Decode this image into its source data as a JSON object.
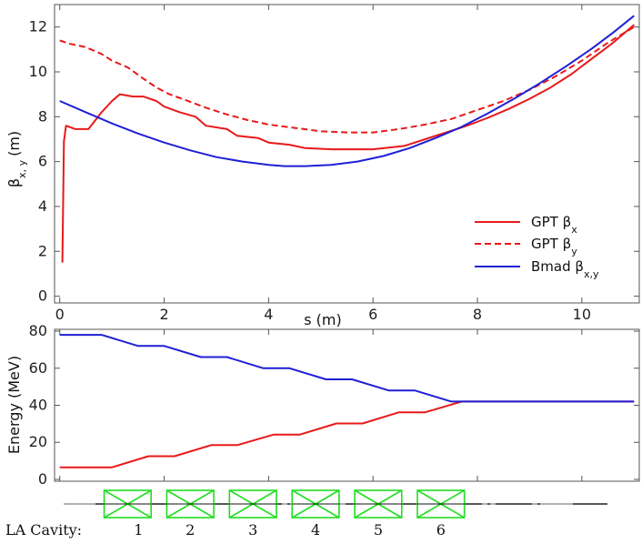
{
  "chart_data": [
    {
      "type": "line",
      "xlabel": "s (m)",
      "ylabel": "β",
      "ylabel_sub": "x, y",
      "ylabel_unit": "(m)",
      "xlim": [
        -0.1,
        11.1
      ],
      "ylim": [
        -0.3,
        13.0
      ],
      "xticks": [
        0,
        2,
        4,
        6,
        8,
        10
      ],
      "yticks": [
        0,
        2,
        4,
        6,
        8,
        10,
        12
      ],
      "legend_position": "lower-right",
      "series": [
        {
          "name": "GPT β",
          "name_sub": "x",
          "color": "#e8191a",
          "style": "solid",
          "points": [
            [
              0.05,
              1.5
            ],
            [
              0.08,
              6.9
            ],
            [
              0.12,
              7.6
            ],
            [
              0.3,
              7.45
            ],
            [
              0.55,
              7.45
            ],
            [
              0.8,
              8.2
            ],
            [
              1.0,
              8.7
            ],
            [
              1.15,
              9.0
            ],
            [
              1.4,
              8.9
            ],
            [
              1.6,
              8.9
            ],
            [
              1.85,
              8.7
            ],
            [
              2.0,
              8.45
            ],
            [
              2.3,
              8.2
            ],
            [
              2.6,
              8.0
            ],
            [
              2.8,
              7.6
            ],
            [
              3.2,
              7.45
            ],
            [
              3.4,
              7.15
            ],
            [
              3.8,
              7.05
            ],
            [
              4.0,
              6.85
            ],
            [
              4.4,
              6.75
            ],
            [
              4.7,
              6.6
            ],
            [
              5.2,
              6.55
            ],
            [
              5.6,
              6.55
            ],
            [
              6.0,
              6.55
            ],
            [
              6.6,
              6.7
            ],
            [
              7.0,
              7.0
            ],
            [
              7.4,
              7.3
            ],
            [
              7.8,
              7.6
            ],
            [
              8.2,
              7.95
            ],
            [
              8.6,
              8.35
            ],
            [
              9.0,
              8.8
            ],
            [
              9.4,
              9.3
            ],
            [
              9.8,
              9.9
            ],
            [
              10.2,
              10.6
            ],
            [
              10.6,
              11.3
            ],
            [
              11.0,
              12.1
            ]
          ]
        },
        {
          "name": "GPT β",
          "name_sub": "y",
          "color": "#e8191a",
          "style": "dashed",
          "points": [
            [
              0.0,
              11.4
            ],
            [
              0.2,
              11.25
            ],
            [
              0.5,
              11.1
            ],
            [
              0.8,
              10.8
            ],
            [
              1.0,
              10.5
            ],
            [
              1.3,
              10.2
            ],
            [
              1.6,
              9.7
            ],
            [
              1.85,
              9.3
            ],
            [
              2.1,
              9.0
            ],
            [
              2.4,
              8.75
            ],
            [
              2.8,
              8.4
            ],
            [
              3.2,
              8.1
            ],
            [
              3.6,
              7.85
            ],
            [
              4.0,
              7.65
            ],
            [
              4.5,
              7.5
            ],
            [
              5.0,
              7.35
            ],
            [
              5.5,
              7.3
            ],
            [
              6.0,
              7.3
            ],
            [
              6.5,
              7.45
            ],
            [
              7.0,
              7.65
            ],
            [
              7.5,
              7.9
            ],
            [
              8.0,
              8.3
            ],
            [
              8.5,
              8.7
            ],
            [
              9.0,
              9.2
            ],
            [
              9.5,
              9.8
            ],
            [
              10.0,
              10.5
            ],
            [
              10.5,
              11.3
            ],
            [
              11.0,
              12.0
            ]
          ]
        },
        {
          "name": "Bmad β",
          "name_sub": "x,y",
          "color": "#1f1fd6",
          "style": "solid",
          "points": [
            [
              0.0,
              8.7
            ],
            [
              0.5,
              8.2
            ],
            [
              1.0,
              7.7
            ],
            [
              1.5,
              7.25
            ],
            [
              2.0,
              6.85
            ],
            [
              2.5,
              6.5
            ],
            [
              3.0,
              6.2
            ],
            [
              3.5,
              6.0
            ],
            [
              4.0,
              5.85
            ],
            [
              4.3,
              5.8
            ],
            [
              4.7,
              5.8
            ],
            [
              5.2,
              5.85
            ],
            [
              5.7,
              6.0
            ],
            [
              6.2,
              6.25
            ],
            [
              6.7,
              6.6
            ],
            [
              7.2,
              7.05
            ],
            [
              7.7,
              7.55
            ],
            [
              8.2,
              8.15
            ],
            [
              8.7,
              8.8
            ],
            [
              9.2,
              9.5
            ],
            [
              9.7,
              10.25
            ],
            [
              10.2,
              11.05
            ],
            [
              10.6,
              11.75
            ],
            [
              11.0,
              12.5
            ]
          ]
        }
      ]
    },
    {
      "type": "line",
      "xlabel": "",
      "ylabel": "Energy (MeV)",
      "xlim": [
        -0.1,
        11.1
      ],
      "ylim": [
        -1.0,
        81.0
      ],
      "yticks": [
        0,
        20,
        40,
        60,
        80
      ],
      "series": [
        {
          "color": "#e8191a",
          "points": [
            [
              0.0,
              6.5
            ],
            [
              1.0,
              6.5
            ],
            [
              1.7,
              12.5
            ],
            [
              2.2,
              12.5
            ],
            [
              2.9,
              18.5
            ],
            [
              3.4,
              18.5
            ],
            [
              4.1,
              24.2
            ],
            [
              4.6,
              24.2
            ],
            [
              5.3,
              30.2
            ],
            [
              5.8,
              30.2
            ],
            [
              6.5,
              36.2
            ],
            [
              7.0,
              36.2
            ],
            [
              7.7,
              42.0
            ],
            [
              11.0,
              42.0
            ]
          ]
        },
        {
          "color": "#1f1fd6",
          "points": [
            [
              0.0,
              78.0
            ],
            [
              0.8,
              78.0
            ],
            [
              1.5,
              72.0
            ],
            [
              2.0,
              72.0
            ],
            [
              2.7,
              66.0
            ],
            [
              3.2,
              66.0
            ],
            [
              3.9,
              60.0
            ],
            [
              4.4,
              60.0
            ],
            [
              5.1,
              54.0
            ],
            [
              5.6,
              54.0
            ],
            [
              6.3,
              48.0
            ],
            [
              6.8,
              48.0
            ],
            [
              7.5,
              42.0
            ],
            [
              11.0,
              42.0
            ]
          ]
        }
      ]
    }
  ],
  "beamline": {
    "color": "#22dd22",
    "cavity_prefix": "LA Cavity:",
    "cavities": [
      {
        "label": "1",
        "s_start": 0.85,
        "s_end": 1.75
      },
      {
        "label": "2",
        "s_start": 2.05,
        "s_end": 2.95
      },
      {
        "label": "3",
        "s_start": 3.25,
        "s_end": 4.15
      },
      {
        "label": "4",
        "s_start": 4.45,
        "s_end": 5.35
      },
      {
        "label": "5",
        "s_start": 5.65,
        "s_end": 6.55
      },
      {
        "label": "6",
        "s_start": 6.85,
        "s_end": 7.75
      }
    ]
  }
}
